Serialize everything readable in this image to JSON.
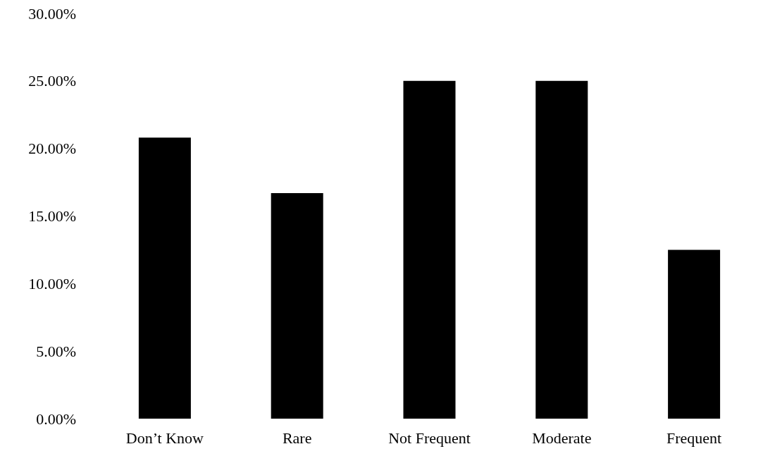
{
  "chart_data": {
    "type": "bar",
    "categories": [
      "Don’t Know",
      "Rare",
      "Not Frequent",
      "Moderate",
      "Frequent"
    ],
    "values": [
      20.8,
      16.7,
      25,
      25,
      12.5
    ],
    "color": "#000000",
    "ylim": [
      0,
      30
    ],
    "yticks": [
      {
        "value": 0,
        "label": "0.00%"
      },
      {
        "value": 5,
        "label": "5.00%"
      },
      {
        "value": 10,
        "label": "10.00%"
      },
      {
        "value": 15,
        "label": "15.00%"
      },
      {
        "value": 20,
        "label": "20.00%"
      },
      {
        "value": 25,
        "label": "25.00%"
      },
      {
        "value": 30,
        "label": "30.00%"
      }
    ],
    "grid": false
  }
}
